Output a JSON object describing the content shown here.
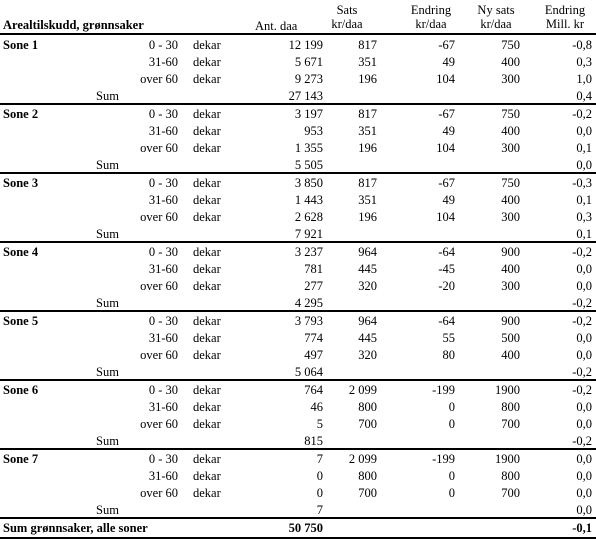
{
  "header": {
    "title": "Arealtilskudd, grønnsaker",
    "col_ant": "Ant. daa",
    "col_sats_1": "Sats",
    "col_sats_2": "kr/daa",
    "col_endring_1": "Endring",
    "col_endring_2": "kr/daa",
    "col_nysats_1": "Ny sats",
    "col_nysats_2": "kr/daa",
    "col_endmill_1": "Endring",
    "col_endmill_2": "Mill. kr"
  },
  "unit": "dekar",
  "sum_label": "Sum",
  "zones": [
    {
      "name": "Sone 1",
      "rows": [
        {
          "range": "0 - 30",
          "ant": "12 199",
          "sats": "817",
          "endring": "-67",
          "nysats": "750",
          "mill": "-0,8"
        },
        {
          "range": "31-60",
          "ant": "5 671",
          "sats": "351",
          "endring": "49",
          "nysats": "400",
          "mill": "0,3"
        },
        {
          "range": "over 60",
          "ant": "9 273",
          "sats": "196",
          "endring": "104",
          "nysats": "300",
          "mill": "1,0"
        }
      ],
      "sum_ant": "27 143",
      "sum_mill": "0,4"
    },
    {
      "name": "Sone 2",
      "rows": [
        {
          "range": "0 - 30",
          "ant": "3 197",
          "sats": "817",
          "endring": "-67",
          "nysats": "750",
          "mill": "-0,2"
        },
        {
          "range": "31-60",
          "ant": "953",
          "sats": "351",
          "endring": "49",
          "nysats": "400",
          "mill": "0,0"
        },
        {
          "range": "over 60",
          "ant": "1 355",
          "sats": "196",
          "endring": "104",
          "nysats": "300",
          "mill": "0,1"
        }
      ],
      "sum_ant": "5 505",
      "sum_mill": "0,0"
    },
    {
      "name": "Sone 3",
      "rows": [
        {
          "range": "0 - 30",
          "ant": "3 850",
          "sats": "817",
          "endring": "-67",
          "nysats": "750",
          "mill": "-0,3"
        },
        {
          "range": "31-60",
          "ant": "1 443",
          "sats": "351",
          "endring": "49",
          "nysats": "400",
          "mill": "0,1"
        },
        {
          "range": "over 60",
          "ant": "2 628",
          "sats": "196",
          "endring": "104",
          "nysats": "300",
          "mill": "0,3"
        }
      ],
      "sum_ant": "7 921",
      "sum_mill": "0,1"
    },
    {
      "name": "Sone 4",
      "rows": [
        {
          "range": "0 - 30",
          "ant": "3 237",
          "sats": "964",
          "endring": "-64",
          "nysats": "900",
          "mill": "-0,2"
        },
        {
          "range": "31-60",
          "ant": "781",
          "sats": "445",
          "endring": "-45",
          "nysats": "400",
          "mill": "0,0"
        },
        {
          "range": "over 60",
          "ant": "277",
          "sats": "320",
          "endring": "-20",
          "nysats": "300",
          "mill": "0,0"
        }
      ],
      "sum_ant": "4 295",
      "sum_mill": "-0,2"
    },
    {
      "name": "Sone 5",
      "rows": [
        {
          "range": "0 - 30",
          "ant": "3 793",
          "sats": "964",
          "endring": "-64",
          "nysats": "900",
          "mill": "-0,2"
        },
        {
          "range": "31-60",
          "ant": "774",
          "sats": "445",
          "endring": "55",
          "nysats": "500",
          "mill": "0,0"
        },
        {
          "range": "over 60",
          "ant": "497",
          "sats": "320",
          "endring": "80",
          "nysats": "400",
          "mill": "0,0"
        }
      ],
      "sum_ant": "5 064",
      "sum_mill": "-0,2"
    },
    {
      "name": "Sone 6",
      "rows": [
        {
          "range": "0 - 30",
          "ant": "764",
          "sats": "2 099",
          "endring": "-199",
          "nysats": "1900",
          "mill": "-0,2"
        },
        {
          "range": "31-60",
          "ant": "46",
          "sats": "800",
          "endring": "0",
          "nysats": "800",
          "mill": "0,0"
        },
        {
          "range": "over 60",
          "ant": "5",
          "sats": "700",
          "endring": "0",
          "nysats": "700",
          "mill": "0,0"
        }
      ],
      "sum_ant": "815",
      "sum_mill": "-0,2"
    },
    {
      "name": "Sone 7",
      "rows": [
        {
          "range": "0 - 30",
          "ant": "7",
          "sats": "2 099",
          "endring": "-199",
          "nysats": "1900",
          "mill": "0,0"
        },
        {
          "range": "31-60",
          "ant": "0",
          "sats": "800",
          "endring": "0",
          "nysats": "800",
          "mill": "0,0"
        },
        {
          "range": "over 60",
          "ant": "0",
          "sats": "700",
          "endring": "0",
          "nysats": "700",
          "mill": "0,0"
        }
      ],
      "sum_ant": "7",
      "sum_mill": "0,0"
    }
  ],
  "total": {
    "label": "Sum grønnsaker, alle soner",
    "ant": "50 750",
    "mill": "-0,1"
  }
}
